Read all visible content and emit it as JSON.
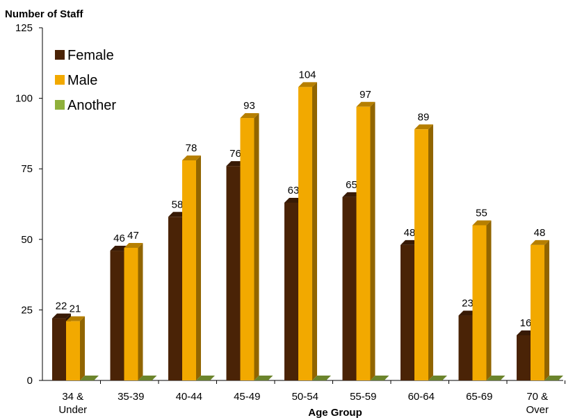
{
  "chart_data": {
    "type": "bar",
    "title": "",
    "ylabel": "Number of Staff",
    "xlabel": "Age Group",
    "ylim": [
      0,
      125
    ],
    "yticks": [
      0,
      25,
      50,
      75,
      100,
      125
    ],
    "categories": [
      [
        "34 &",
        "Under"
      ],
      [
        "35-39"
      ],
      [
        "40-44"
      ],
      [
        "45-49"
      ],
      [
        "50-54"
      ],
      [
        "55-59"
      ],
      [
        "60-64"
      ],
      [
        "65-69"
      ],
      [
        "70 &",
        "Over"
      ]
    ],
    "series": [
      {
        "name": "Female",
        "color": "#4a2306",
        "values": [
          22,
          46,
          58,
          76,
          63,
          65,
          48,
          23,
          16
        ]
      },
      {
        "name": "Male",
        "color": "#f2a900",
        "values": [
          21,
          47,
          78,
          93,
          104,
          97,
          89,
          55,
          48
        ]
      },
      {
        "name": "Another",
        "color": "#8fb03b",
        "values": [
          0,
          0,
          0,
          0,
          0,
          0,
          0,
          0,
          0
        ]
      }
    ],
    "legend": "top-left",
    "grid": false,
    "style": "3d"
  }
}
